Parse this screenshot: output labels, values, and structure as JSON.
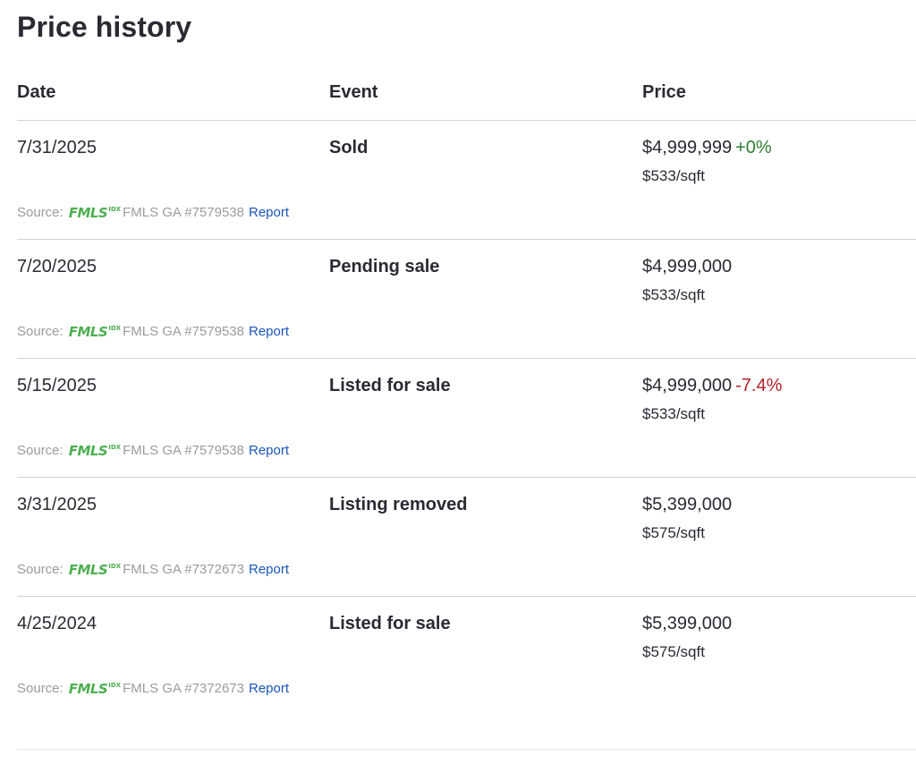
{
  "title": "Price history",
  "columns": {
    "date": "Date",
    "event": "Event",
    "price": "Price"
  },
  "source_label": "Source:",
  "logo_text": "FMLS",
  "logo_badge": "IDX",
  "report_label": "Report",
  "colors": {
    "positive": "#2e7d32",
    "negative": "#b3202a",
    "link": "#1a56b8",
    "logo": "#4caf50"
  },
  "rows": [
    {
      "date": "7/31/2025",
      "event": "Sold",
      "price": "$4,999,999",
      "change": "+0%",
      "change_direction": "up",
      "sqft": "$533/sqft",
      "mls": "FMLS GA #7579538"
    },
    {
      "date": "7/20/2025",
      "event": "Pending sale",
      "price": "$4,999,000",
      "change": "",
      "change_direction": "",
      "sqft": "$533/sqft",
      "mls": "FMLS GA #7579538"
    },
    {
      "date": "5/15/2025",
      "event": "Listed for sale",
      "price": "$4,999,000",
      "change": "-7.4%",
      "change_direction": "down",
      "sqft": "$533/sqft",
      "mls": "FMLS GA #7579538"
    },
    {
      "date": "3/31/2025",
      "event": "Listing removed",
      "price": "$5,399,000",
      "change": "",
      "change_direction": "",
      "sqft": "$575/sqft",
      "mls": "FMLS GA #7372673"
    },
    {
      "date": "4/25/2024",
      "event": "Listed for sale",
      "price": "$5,399,000",
      "change": "",
      "change_direction": "",
      "sqft": "$575/sqft",
      "mls": "FMLS GA #7372673"
    }
  ]
}
